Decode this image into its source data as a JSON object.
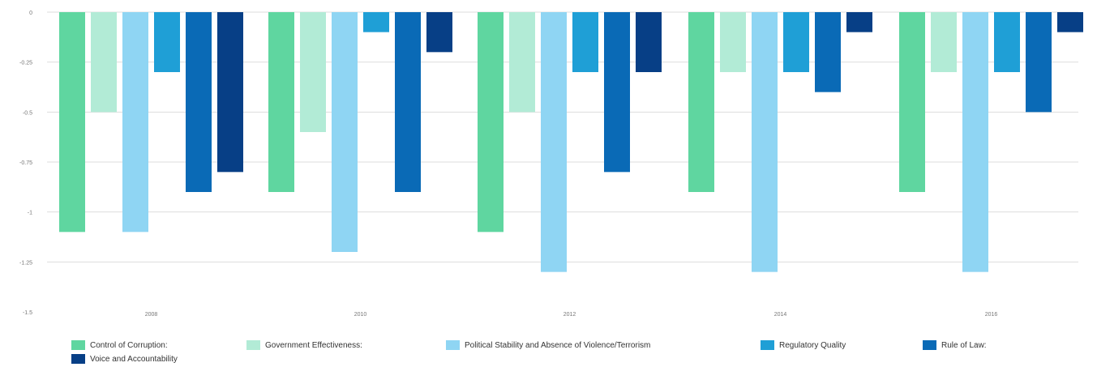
{
  "chart_data": {
    "type": "bar",
    "categories": [
      "2008",
      "2010",
      "2012",
      "2014",
      "2016"
    ],
    "series": [
      {
        "name": "Control of Corruption",
        "color": "#5fd6a0",
        "values": [
          -1.1,
          -0.9,
          -1.1,
          -0.9,
          -0.9
        ]
      },
      {
        "name": "Government Effectiveness",
        "color": "#b2ebd6",
        "values": [
          -0.5,
          -0.6,
          -0.5,
          -0.3,
          -0.3
        ]
      },
      {
        "name": "Political Stability and Absence of Violence/Terrorism",
        "color": "#8fd5f3",
        "values": [
          -1.1,
          -1.2,
          -1.3,
          -1.3,
          -1.3
        ]
      },
      {
        "name": "Regulatory Quality",
        "color": "#1f9fd6",
        "values": [
          -0.3,
          -0.1,
          -0.3,
          -0.3,
          -0.3
        ]
      },
      {
        "name": "Rule of Law",
        "color": "#0a6ab6",
        "values": [
          -0.9,
          -0.9,
          -0.8,
          -0.4,
          -0.5
        ]
      },
      {
        "name": "Voice and Accountability",
        "color": "#073f86",
        "values": [
          -0.8,
          -0.2,
          -0.3,
          -0.1,
          -0.1
        ]
      }
    ],
    "yticks": [
      "0",
      "-0.25",
      "-0.5",
      "-0.75",
      "-1",
      "-1.25",
      "-1.5"
    ],
    "ylim": [
      -1.5,
      0
    ],
    "grid": true,
    "legend_position": "bottom"
  },
  "legend_labels": [
    "Control of Corruption:",
    "Government Effectiveness:",
    "Political Stability and Absence of Violence/Terrorism",
    "Regulatory Quality",
    "Rule of Law:",
    "Voice and Accountability"
  ]
}
